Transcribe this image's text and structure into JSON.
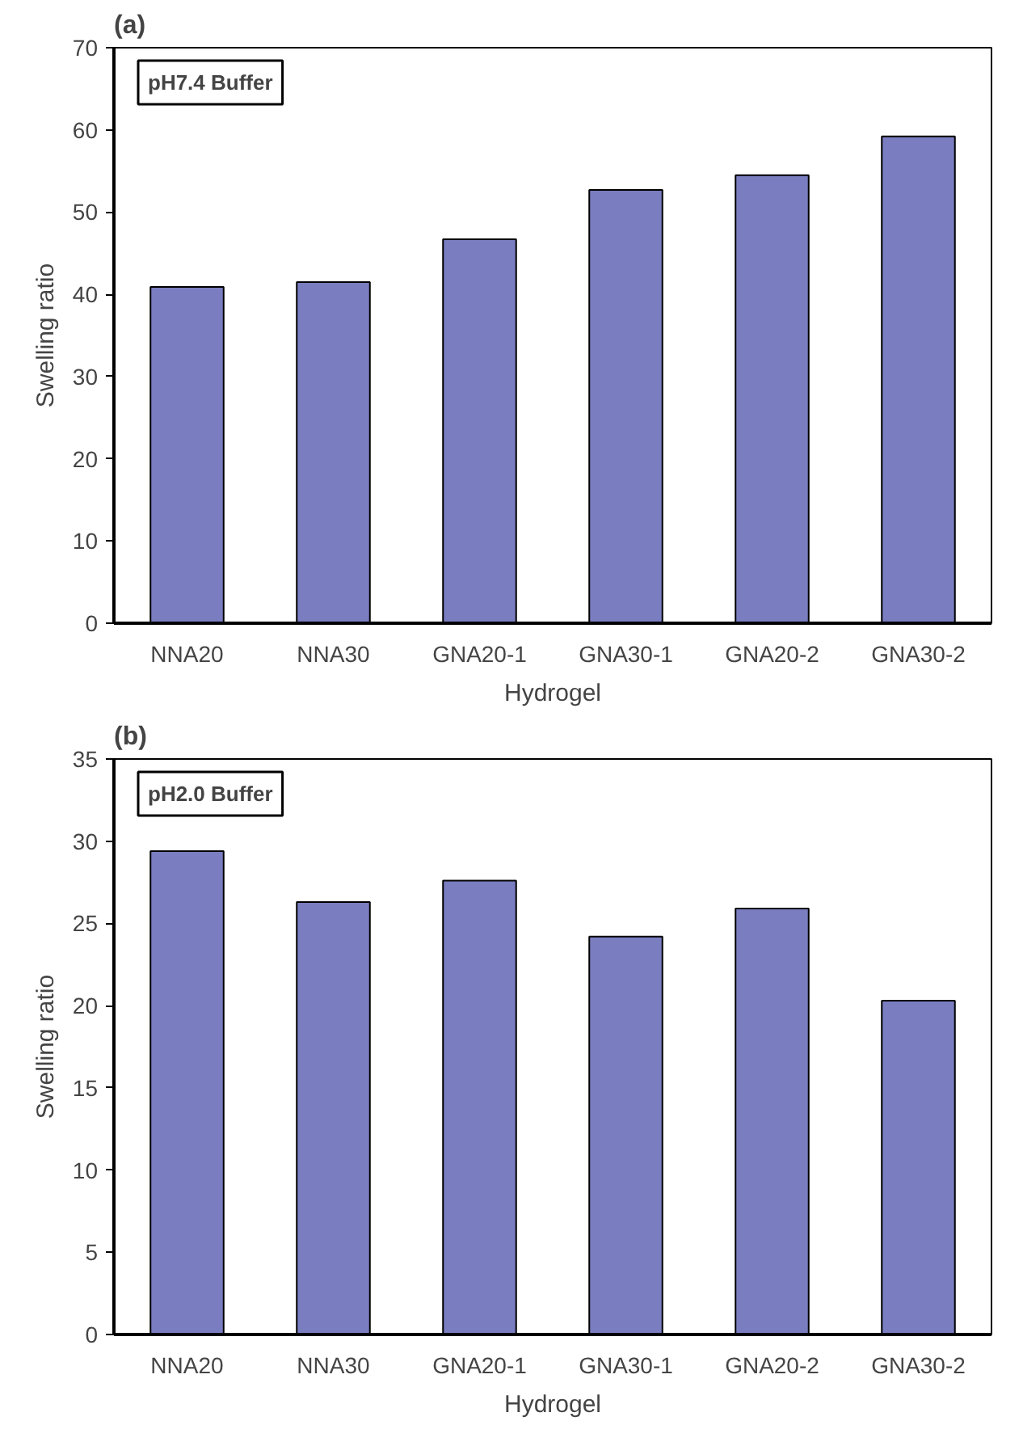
{
  "chart_data": [
    {
      "type": "bar",
      "title": "(a)",
      "xlabel": "Hydrogel",
      "ylabel": "Swelling ratio",
      "annotations": [
        "pH7.4 Buffer"
      ],
      "categories": [
        "NNA20",
        "NNA30",
        "GNA20-1",
        "GNA30-1",
        "GNA20-2",
        "GNA30-2"
      ],
      "values": [
        40.9,
        41.5,
        46.7,
        52.7,
        54.5,
        59.2
      ],
      "color": "#7a7dbf",
      "ylim": [
        0,
        70
      ],
      "yticks": [
        0,
        10,
        20,
        30,
        40,
        50,
        60,
        70
      ]
    },
    {
      "type": "bar",
      "title": "(b)",
      "xlabel": "Hydrogel",
      "ylabel": "Swelling ratio",
      "annotations": [
        "pH2.0 Buffer"
      ],
      "categories": [
        "NNA20",
        "NNA30",
        "GNA20-1",
        "GNA30-1",
        "GNA20-2",
        "GNA30-2"
      ],
      "values": [
        29.4,
        26.3,
        27.6,
        24.2,
        25.9,
        20.3
      ],
      "color": "#7a7dbf",
      "ylim": [
        0,
        35
      ],
      "yticks": [
        0,
        5,
        10,
        15,
        20,
        25,
        30,
        35
      ]
    }
  ]
}
